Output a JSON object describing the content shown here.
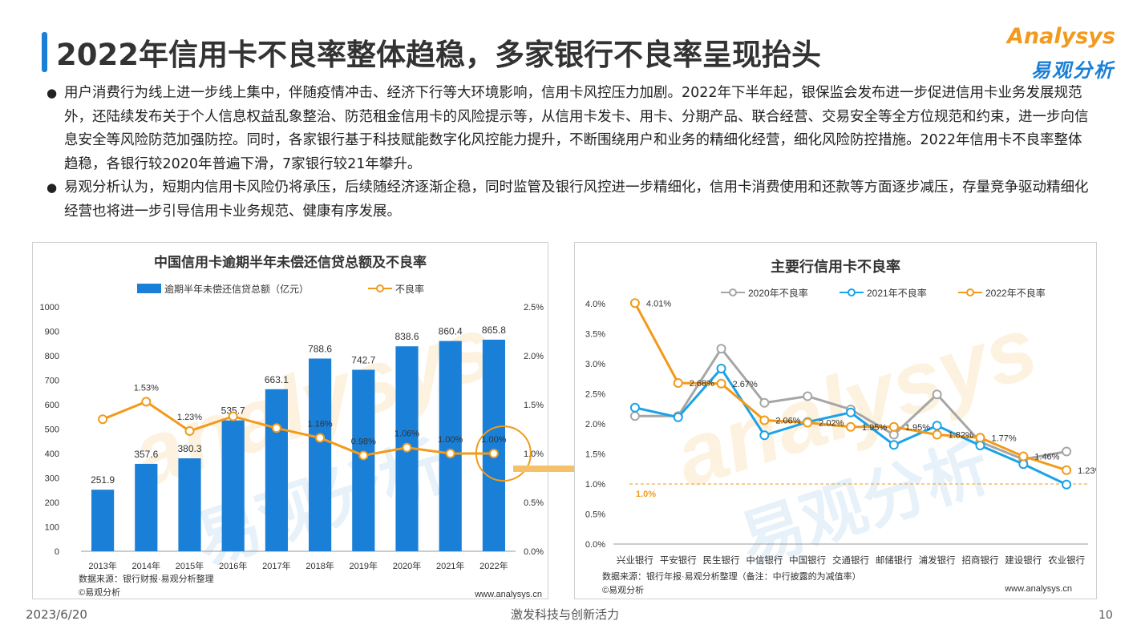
{
  "page": {
    "title": "2022年信用卡不良率整体趋稳，多家银行不良率呈现抬头",
    "logo_en": "Analysys",
    "logo_cn": "易观分析",
    "bullets": [
      "用户消费行为线上进一步线上集中，伴随疫情冲击、经济下行等大环境影响，信用卡风控压力加剧。2022年下半年起，银保监会发布进一步促进信用卡业务发展规范外，还陆续发布关于个人信息权益乱象整治、防范租金信用卡的风险提示等，从信用卡发卡、用卡、分期产品、联合经营、交易安全等全方位规范和约束，进一步向信息安全等风险防范加强防控。同时，各家银行基于科技赋能数字化风控能力提升，不断围绕用户和业务的精细化经营，细化风险防控措施。2022年信用卡不良率整体趋稳，各银行较2020年普遍下滑，7家银行较21年攀升。",
      "易观分析认为，短期内信用卡风险仍将承压，后续随经济逐渐企稳，同时监管及银行风控进一步精细化，信用卡消费使用和还款等方面逐步减压，存量竞争驱动精细化经营也将进一步引导信用卡业务规范、健康有序发展。"
    ],
    "footer": {
      "date": "2023/6/20",
      "slogan": "激发科技与创新活力",
      "page_number": "10"
    },
    "watermark_en": "analysys",
    "watermark_cn": "易观分析"
  },
  "chart_data": [
    {
      "type": "bar+line",
      "title": "中国信用卡逾期半年未偿还信贷总额及不良率",
      "categories": [
        "2013年",
        "2014年",
        "2015年",
        "2016年",
        "2017年",
        "2018年",
        "2019年",
        "2020年",
        "2021年",
        "2022年"
      ],
      "series": [
        {
          "name": "逾期半年未偿还信贷总额（亿元）",
          "type": "bar",
          "axis": "left",
          "color": "#1a7fd6",
          "values": [
            251.9,
            357.6,
            380.3,
            535.7,
            663.1,
            788.6,
            742.7,
            838.6,
            860.4,
            865.8
          ]
        },
        {
          "name": "不良率",
          "type": "line",
          "axis": "right",
          "color": "#f29a19",
          "values": [
            1.35,
            1.53,
            1.23,
            1.38,
            1.26,
            1.16,
            0.98,
            1.06,
            1.0,
            1.0
          ],
          "labels": [
            "",
            "1.53%",
            "1.23%",
            "",
            "",
            "1.16%",
            "0.98%",
            "1.06%",
            "1.00%",
            "1.00%"
          ]
        }
      ],
      "y_left": {
        "min": 0,
        "max": 1000,
        "ticks": [
          "0",
          "100",
          "200",
          "300",
          "400",
          "500",
          "600",
          "700",
          "800",
          "900",
          "1000"
        ]
      },
      "y_right": {
        "min": 0,
        "max": 2.5,
        "ticks": [
          "0.0%",
          "0.5%",
          "1.0%",
          "1.5%",
          "2.0%",
          "2.5%"
        ]
      },
      "legend": "top",
      "grid": false,
      "source": "数据来源：银行财报·易观分析整理",
      "copyright": "©易观分析",
      "url": "www.analysys.cn"
    },
    {
      "type": "line",
      "title": "主要行信用卡不良率",
      "categories": [
        "兴业银行",
        "平安银行",
        "民生银行",
        "中信银行",
        "中国银行",
        "交通银行",
        "邮储银行",
        "浦发银行",
        "招商银行",
        "建设银行",
        "农业银行"
      ],
      "series": [
        {
          "name": "2020年不良率",
          "color": "#a6a6a6",
          "values": [
            2.13,
            2.13,
            3.25,
            2.35,
            2.46,
            2.24,
            1.82,
            2.49,
            1.7,
            1.41,
            1.54
          ]
        },
        {
          "name": "2021年不良率",
          "color": "#1aa3e8",
          "values": [
            2.27,
            2.11,
            2.92,
            1.81,
            2.03,
            2.19,
            1.65,
            1.97,
            1.64,
            1.33,
            0.99
          ]
        },
        {
          "name": "2022年不良率",
          "color": "#f29a19",
          "values": [
            4.01,
            2.68,
            2.67,
            2.06,
            2.02,
            1.95,
            1.95,
            1.82,
            1.77,
            1.46,
            1.23
          ],
          "labels": [
            "4.01%",
            "2.68%",
            "2.67%",
            "2.06%",
            "2.02%",
            "1.95%",
            "1.95%",
            "1.82%",
            "1.77%",
            "1.46%",
            "1.23%"
          ]
        }
      ],
      "reference_line": {
        "value": 1.0,
        "label": "1.0%",
        "color": "#f29a19"
      },
      "y": {
        "min": 0,
        "max": 4.0,
        "ticks": [
          "0.0%",
          "0.5%",
          "1.0%",
          "1.5%",
          "2.0%",
          "2.5%",
          "3.0%",
          "3.5%",
          "4.0%"
        ]
      },
      "legend": "top",
      "grid": false,
      "source": "数据来源：银行年报·易观分析整理（备注：中行披露的为减值率）",
      "copyright": "©易观分析",
      "url": "www.analysys.cn"
    }
  ]
}
